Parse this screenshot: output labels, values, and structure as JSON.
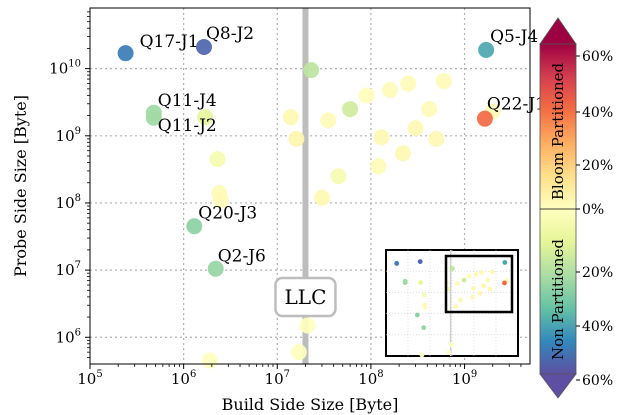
{
  "chart_data": {
    "type": "scatter",
    "x_scale": "log",
    "y_scale": "log",
    "xlabel": "Build Side Size [Byte]",
    "ylabel": "Probe Side Size [Byte]",
    "xlim": [
      100000,
      5000000000
    ],
    "ylim": [
      400000,
      80000000000
    ],
    "x_ticks": [
      {
        "value": 100000,
        "base": "10",
        "exp": "5"
      },
      {
        "value": 1000000,
        "base": "10",
        "exp": "6"
      },
      {
        "value": 10000000,
        "base": "10",
        "exp": "7"
      },
      {
        "value": 100000000,
        "base": "10",
        "exp": "8"
      },
      {
        "value": 1000000000,
        "base": "10",
        "exp": "9"
      }
    ],
    "y_ticks": [
      {
        "value": 1000000,
        "base": "10",
        "exp": "6"
      },
      {
        "value": 10000000,
        "base": "10",
        "exp": "7"
      },
      {
        "value": 100000000,
        "base": "10",
        "exp": "8"
      },
      {
        "value": 1000000000,
        "base": "10",
        "exp": "9"
      },
      {
        "value": 10000000000,
        "base": "10",
        "exp": "10"
      }
    ],
    "grid": true,
    "llc": {
      "label": "LLC",
      "x": 20000000
    },
    "colorbar": {
      "top_label": "Bloom Partitioned",
      "bottom_label": "Non Partitioned",
      "ticks": [
        "60%",
        "40%",
        "20%",
        "0%",
        "20%",
        "40%",
        "60%"
      ],
      "colors": [
        "#9e0142",
        "#d53e4f",
        "#f46d43",
        "#fdae61",
        "#fee08b",
        "#ffffbf",
        "#e6f598",
        "#abdda4",
        "#66c2a5",
        "#3288bd",
        "#5e4fa2"
      ]
    },
    "points": [
      {
        "x": 240000,
        "y": 17000000000,
        "v": -0.55,
        "label": "Q17-J1"
      },
      {
        "x": 1650000,
        "y": 21000000000,
        "v": -0.6,
        "label": "Q8-J2"
      },
      {
        "x": 1700000000,
        "y": 19000000000,
        "v": -0.45,
        "label": "Q5-J4"
      },
      {
        "x": 480000,
        "y": 2200000000,
        "v": -0.28,
        "label": "Q11-J4"
      },
      {
        "x": 480000,
        "y": 1850000000,
        "v": -0.28,
        "label": "Q11-J2"
      },
      {
        "x": 1650000000,
        "y": 1800000000,
        "v": 0.4,
        "label": "Q22-J1"
      },
      {
        "x": 1300000,
        "y": 45000000,
        "v": -0.32,
        "label": "Q20-J3"
      },
      {
        "x": 2200000,
        "y": 10500000,
        "v": -0.3,
        "label": "Q2-J6"
      },
      {
        "x": 1700000,
        "y": 1900000000,
        "v": -0.12,
        "label": ""
      },
      {
        "x": 2300000,
        "y": 450000000,
        "v": -0.05,
        "label": ""
      },
      {
        "x": 2400000,
        "y": 140000000,
        "v": 0.02,
        "label": ""
      },
      {
        "x": 2500000,
        "y": 110000000,
        "v": 0.02,
        "label": ""
      },
      {
        "x": 1900000,
        "y": 450000,
        "v": 0.0,
        "label": ""
      },
      {
        "x": 14000000,
        "y": 1900000000,
        "v": 0.03,
        "label": ""
      },
      {
        "x": 16000000,
        "y": 900000000,
        "v": 0.04,
        "label": ""
      },
      {
        "x": 17000000,
        "y": 600000,
        "v": 0.0,
        "label": ""
      },
      {
        "x": 21000000,
        "y": 1500000,
        "v": 0.0,
        "label": ""
      },
      {
        "x": 23000000,
        "y": 9500000000,
        "v": -0.22,
        "label": ""
      },
      {
        "x": 30000000,
        "y": 120000000,
        "v": 0.03,
        "label": ""
      },
      {
        "x": 35000000,
        "y": 1700000000,
        "v": 0.02,
        "label": ""
      },
      {
        "x": 45000000,
        "y": 250000000,
        "v": -0.05,
        "label": ""
      },
      {
        "x": 60000000,
        "y": 2500000000,
        "v": -0.18,
        "label": ""
      },
      {
        "x": 90000000,
        "y": 4000000000,
        "v": 0.01,
        "label": ""
      },
      {
        "x": 120000000,
        "y": 350000000,
        "v": 0.02,
        "label": ""
      },
      {
        "x": 130000000,
        "y": 950000000,
        "v": 0.03,
        "label": ""
      },
      {
        "x": 160000000,
        "y": 4800000000,
        "v": 0.02,
        "label": ""
      },
      {
        "x": 220000000,
        "y": 550000000,
        "v": 0.03,
        "label": ""
      },
      {
        "x": 250000000,
        "y": 6000000000,
        "v": 0.02,
        "label": ""
      },
      {
        "x": 300000000,
        "y": 1300000000,
        "v": 0.03,
        "label": ""
      },
      {
        "x": 420000000,
        "y": 2500000000,
        "v": 0.02,
        "label": ""
      },
      {
        "x": 500000000,
        "y": 900000000,
        "v": 0.03,
        "label": ""
      },
      {
        "x": 600000000,
        "y": 6500000000,
        "v": 0.02,
        "label": ""
      },
      {
        "x": 2000000000,
        "y": 2300000000,
        "v": 0.02,
        "label": ""
      }
    ]
  }
}
